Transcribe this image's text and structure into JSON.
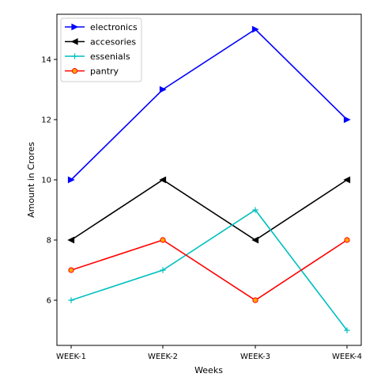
{
  "chart_data": {
    "type": "line",
    "title": "",
    "xlabel": "Weeks",
    "ylabel": "Amount in Crores",
    "categories": [
      "WEEK-1",
      "WEEK-2",
      "WEEK-3",
      "WEEK-4"
    ],
    "ylim": [
      4.5,
      15.5
    ],
    "yticks": [
      6,
      8,
      10,
      12,
      14
    ],
    "grid": false,
    "legend_position": "top-left",
    "series": [
      {
        "name": "electronics",
        "values": [
          10,
          13,
          15,
          12
        ],
        "color": "#0000ff",
        "marker": "triangle-right"
      },
      {
        "name": "accesories",
        "values": [
          8,
          10,
          8,
          10
        ],
        "color": "#000000",
        "marker": "triangle-left"
      },
      {
        "name": "essenials",
        "values": [
          6,
          7,
          9,
          5
        ],
        "color": "#00bfbf",
        "marker": "plus"
      },
      {
        "name": "pantry",
        "values": [
          7,
          8,
          6,
          8
        ],
        "color": "#ff0000",
        "marker": "circle",
        "marker_fill": "#ffa500"
      }
    ]
  }
}
